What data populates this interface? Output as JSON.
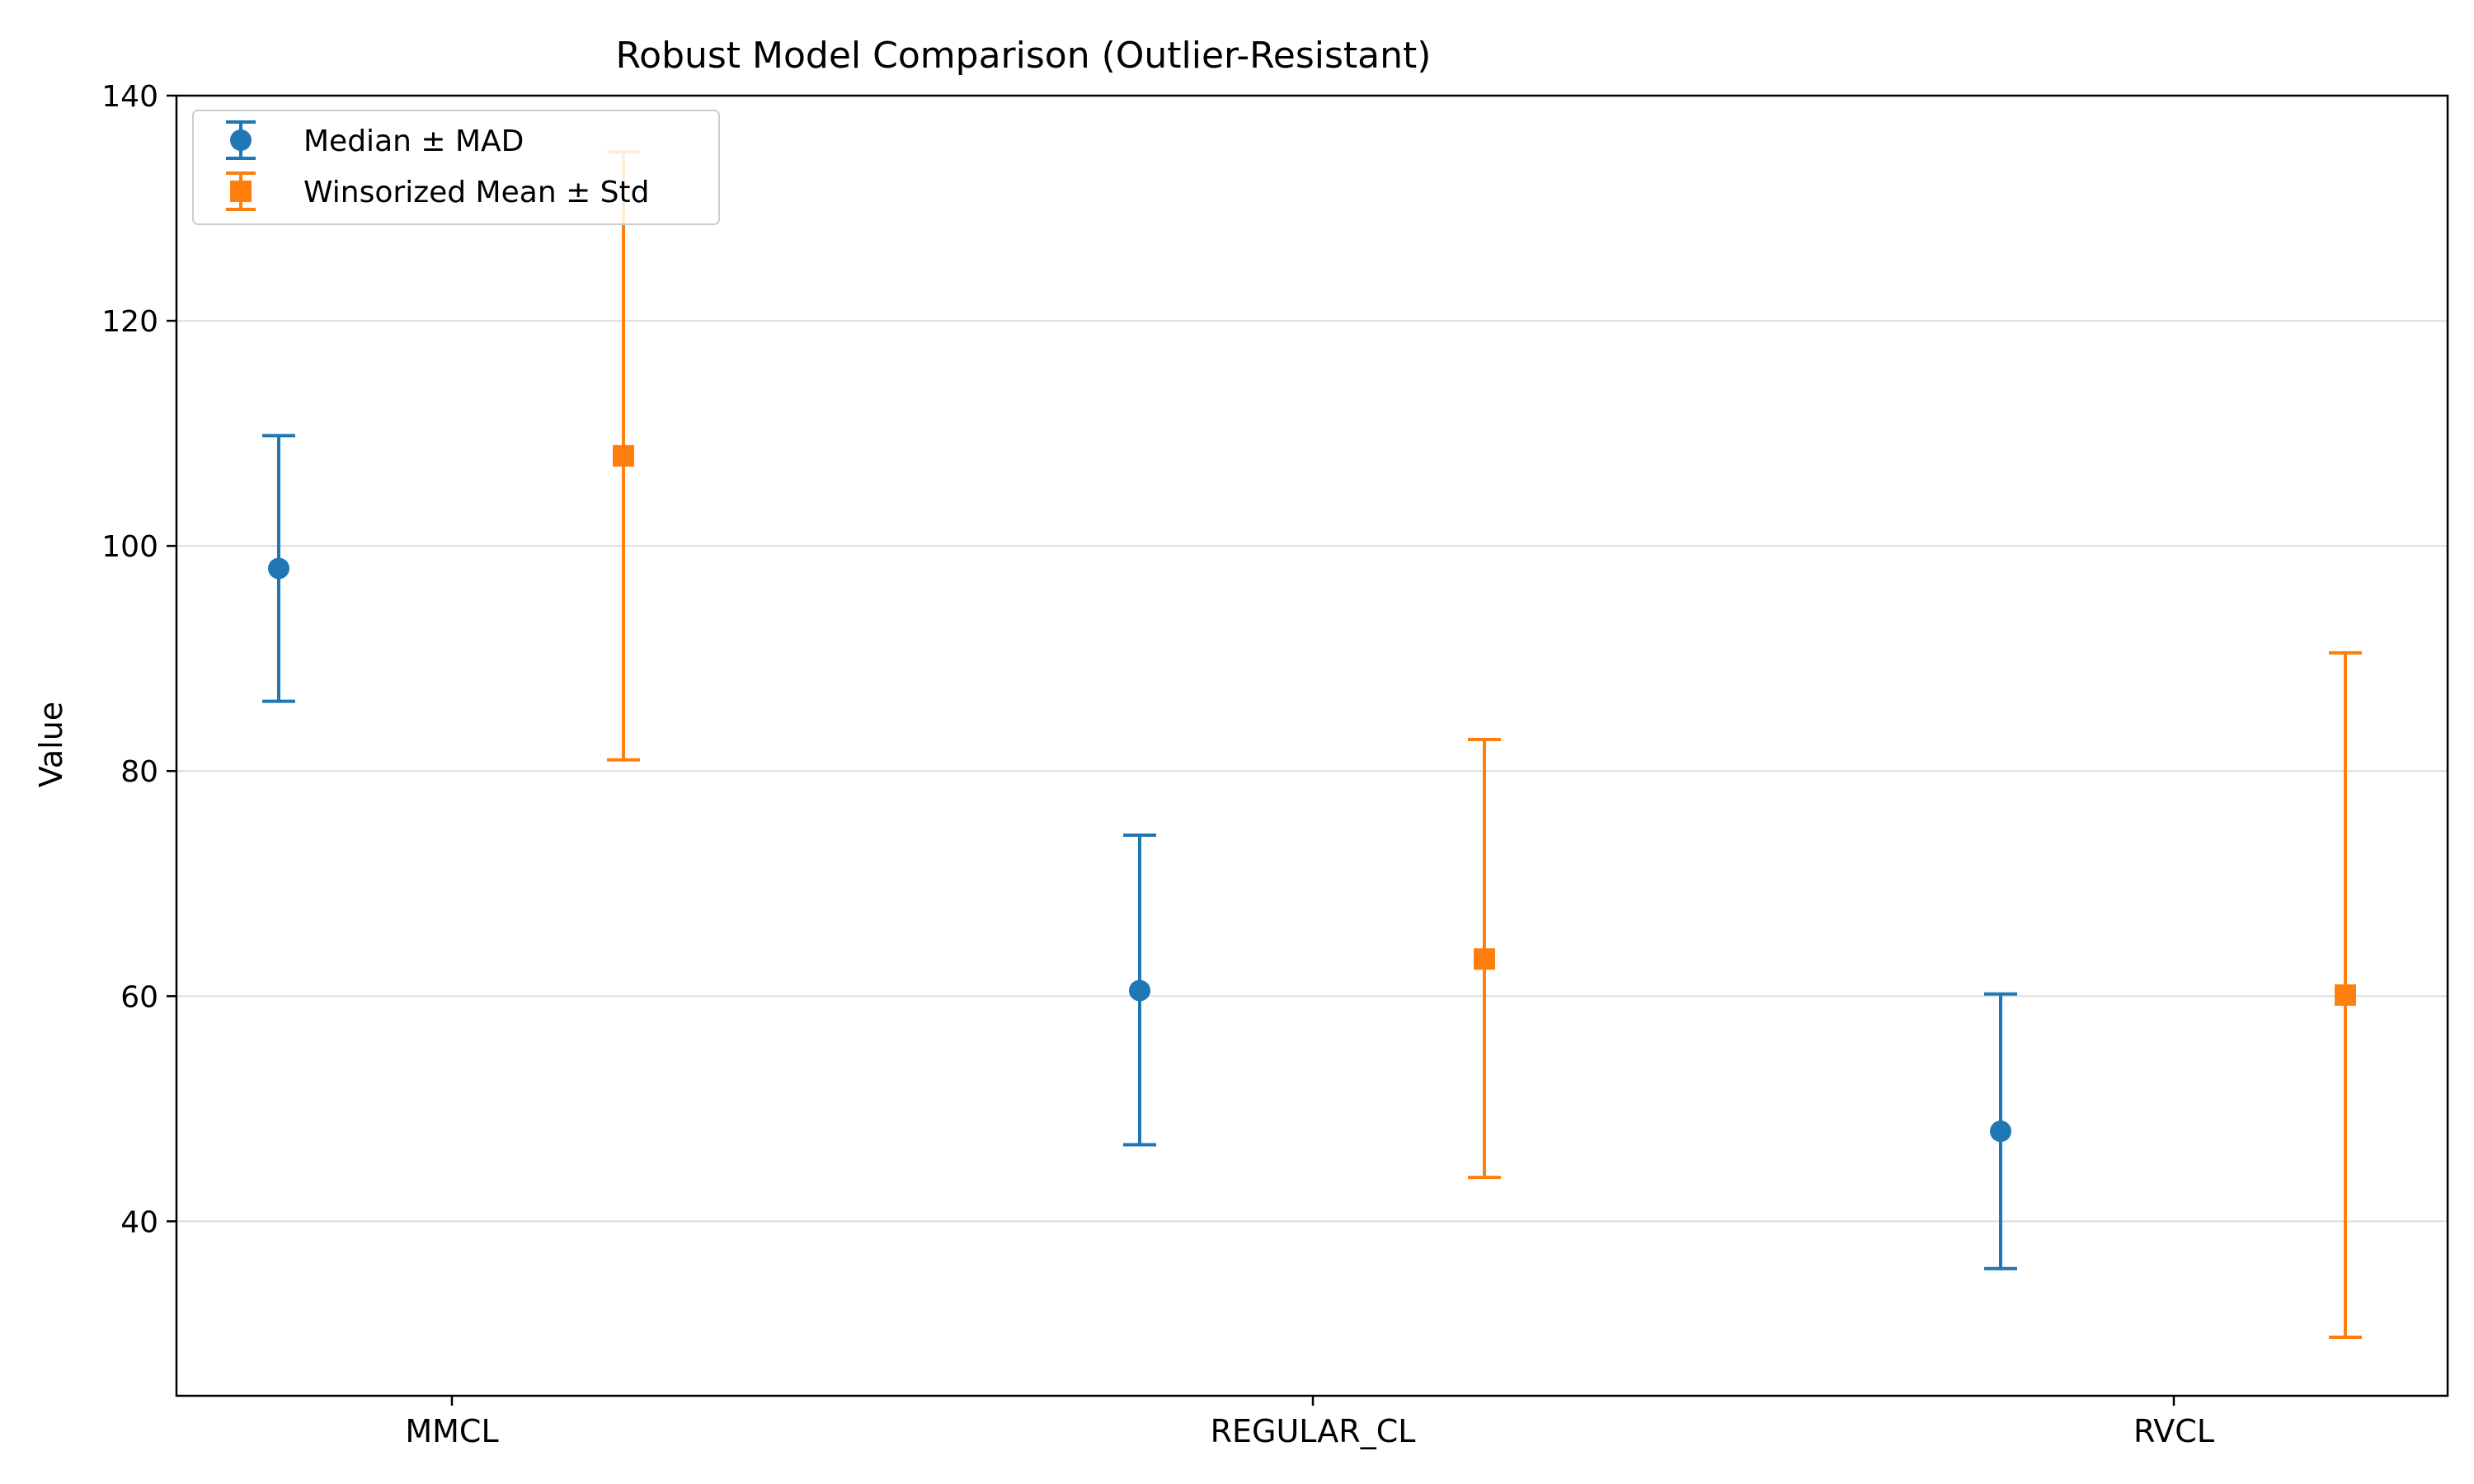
{
  "chart_data": {
    "type": "errorbar",
    "title": "Robust Model Comparison (Outlier-Resistant)",
    "xlabel": "",
    "ylabel": "Value",
    "categories": [
      "MMCL",
      "REGULAR_CL",
      "RVCL"
    ],
    "ylim": [
      24.5,
      140
    ],
    "yticks": [
      40,
      60,
      80,
      100,
      120,
      140
    ],
    "grid": "y",
    "legend_position": "upper-left",
    "series": [
      {
        "name": "Median ± MAD",
        "marker": "circle",
        "color": "#1f77b4",
        "values": [
          98.0,
          60.5,
          48.0
        ],
        "lower": [
          86.2,
          46.8,
          35.8
        ],
        "upper": [
          109.8,
          74.3,
          60.2
        ]
      },
      {
        "name": "Winsorized Mean ± Std",
        "marker": "square",
        "color": "#ff7f0e",
        "values": [
          108.0,
          63.3,
          60.1
        ],
        "lower": [
          81.0,
          43.9,
          29.7
        ],
        "upper": [
          135.0,
          82.8,
          90.5
        ]
      }
    ]
  }
}
